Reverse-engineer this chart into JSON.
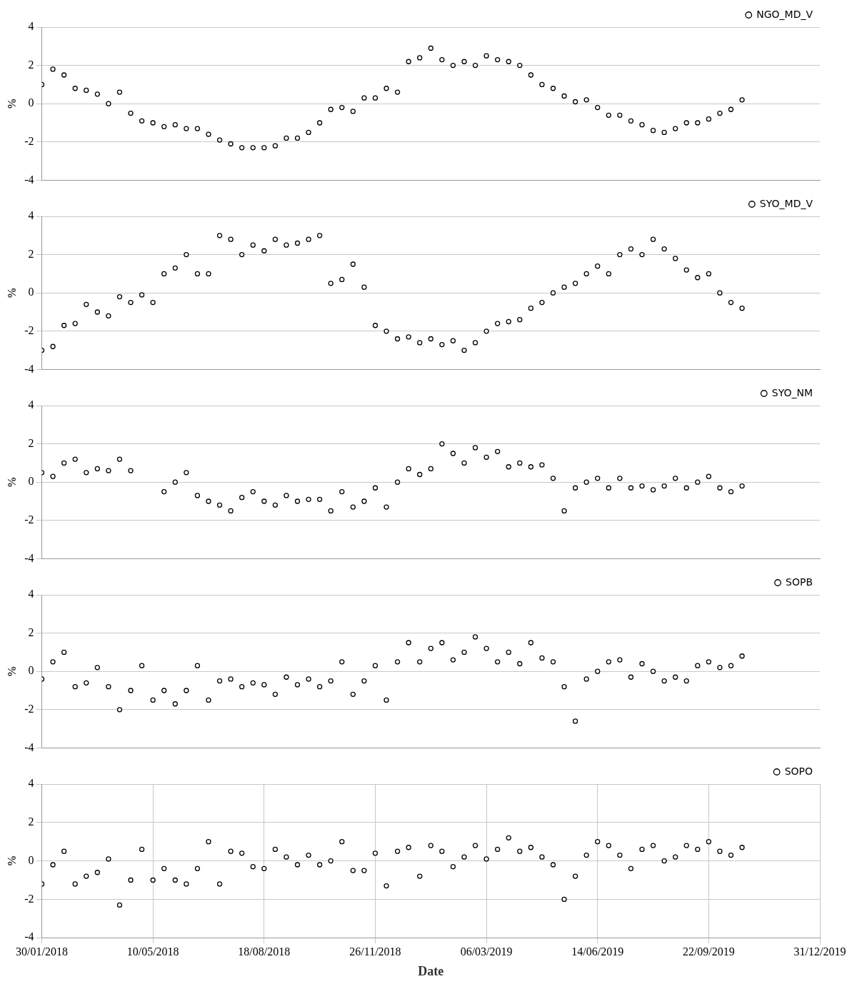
{
  "chart_data": [
    {
      "type": "scatter",
      "ylabel": "%",
      "tick_labels": "y",
      "marker": "circle",
      "grid": true,
      "legend": "top right",
      "xlim": [
        "2018-01-30",
        "2019-12-31"
      ],
      "xticks": [
        {
          "value": "2018-01-30",
          "label": null
        },
        {
          "value": "2018-05-10",
          "label": null
        },
        {
          "value": "2018-08-18",
          "label": null
        },
        {
          "value": "2018-11-26",
          "label": null
        },
        {
          "value": "2019-03-06",
          "label": null
        },
        {
          "value": "2019-06-14",
          "label": null
        },
        {
          "value": "2019-09-22",
          "label": null
        },
        {
          "value": "2019-12-31",
          "label": null
        }
      ],
      "ylim": [
        -4,
        4
      ],
      "yticks": [
        -4,
        -2,
        0,
        2,
        4
      ],
      "x": [
        "2018-01-30",
        "2018-02-09",
        "2018-02-19",
        "2018-03-01",
        "2018-03-11",
        "2018-03-21",
        "2018-03-31",
        "2018-04-10",
        "2018-04-20",
        "2018-04-30",
        "2018-05-10",
        "2018-05-20",
        "2018-05-30",
        "2018-06-09",
        "2018-06-19",
        "2018-06-29",
        "2018-07-09",
        "2018-07-19",
        "2018-07-29",
        "2018-08-08",
        "2018-08-18",
        "2018-08-28",
        "2018-09-07",
        "2018-09-17",
        "2018-09-27",
        "2018-10-07",
        "2018-10-17",
        "2018-10-27",
        "2018-11-06",
        "2018-11-16",
        "2018-11-26",
        "2018-12-06",
        "2018-12-16",
        "2018-12-26",
        "2019-01-05",
        "2019-01-15",
        "2019-01-25",
        "2019-02-04",
        "2019-02-14",
        "2019-02-24",
        "2019-03-06",
        "2019-03-16",
        "2019-03-26",
        "2019-04-05",
        "2019-04-15",
        "2019-04-25",
        "2019-05-05",
        "2019-05-15",
        "2019-05-25",
        "2019-06-04",
        "2019-06-14",
        "2019-06-24",
        "2019-07-04",
        "2019-07-14",
        "2019-07-24",
        "2019-08-03",
        "2019-08-13",
        "2019-08-23",
        "2019-09-02",
        "2019-09-12",
        "2019-09-22",
        "2019-10-02",
        "2019-10-12",
        "2019-10-22"
      ],
      "series": [
        {
          "name": "NGO_MD_V",
          "color": "#000000",
          "values": [
            1.0,
            1.8,
            1.5,
            0.8,
            0.7,
            0.5,
            0.0,
            0.6,
            -0.5,
            -0.9,
            -1.0,
            -1.2,
            -1.1,
            -1.3,
            -1.3,
            -1.6,
            -1.9,
            -2.1,
            -2.3,
            -2.3,
            -2.3,
            -2.2,
            -1.8,
            -1.8,
            -1.5,
            -1.0,
            -0.3,
            -0.2,
            -0.4,
            0.3,
            0.3,
            0.8,
            0.6,
            2.2,
            2.4,
            2.9,
            2.3,
            2.0,
            2.2,
            2.0,
            2.5,
            2.3,
            2.2,
            2.0,
            1.5,
            1.0,
            0.8,
            0.4,
            0.1,
            0.2,
            -0.2,
            -0.6,
            -0.6,
            -0.9,
            -1.1,
            -1.4,
            -1.5,
            -1.3,
            -1.0,
            -1.0,
            -0.8,
            -0.5,
            -0.3,
            0.2
          ]
        }
      ]
    },
    {
      "type": "scatter",
      "ylabel": "%",
      "tick_labels": "y",
      "marker": "circle",
      "grid": true,
      "legend": "top right",
      "xlim": [
        "2018-01-30",
        "2019-12-31"
      ],
      "xticks": [
        {
          "value": "2018-01-30",
          "label": null
        },
        {
          "value": "2018-05-10",
          "label": null
        },
        {
          "value": "2018-08-18",
          "label": null
        },
        {
          "value": "2018-11-26",
          "label": null
        },
        {
          "value": "2019-03-06",
          "label": null
        },
        {
          "value": "2019-06-14",
          "label": null
        },
        {
          "value": "2019-09-22",
          "label": null
        },
        {
          "value": "2019-12-31",
          "label": null
        }
      ],
      "ylim": [
        -4,
        4
      ],
      "yticks": [
        -4,
        -2,
        0,
        2,
        4
      ],
      "x": [
        "2018-01-30",
        "2018-02-09",
        "2018-02-19",
        "2018-03-01",
        "2018-03-11",
        "2018-03-21",
        "2018-03-31",
        "2018-04-10",
        "2018-04-20",
        "2018-04-30",
        "2018-05-10",
        "2018-05-20",
        "2018-05-30",
        "2018-06-09",
        "2018-06-19",
        "2018-06-29",
        "2018-07-09",
        "2018-07-19",
        "2018-07-29",
        "2018-08-08",
        "2018-08-18",
        "2018-08-28",
        "2018-09-07",
        "2018-09-17",
        "2018-09-27",
        "2018-10-07",
        "2018-10-17",
        "2018-10-27",
        "2018-11-06",
        "2018-11-16",
        "2018-11-26",
        "2018-12-06",
        "2018-12-16",
        "2018-12-26",
        "2019-01-05",
        "2019-01-15",
        "2019-01-25",
        "2019-02-04",
        "2019-02-14",
        "2019-02-24",
        "2019-03-06",
        "2019-03-16",
        "2019-03-26",
        "2019-04-05",
        "2019-04-15",
        "2019-04-25",
        "2019-05-05",
        "2019-05-15",
        "2019-05-25",
        "2019-06-04",
        "2019-06-14",
        "2019-06-24",
        "2019-07-04",
        "2019-07-14",
        "2019-07-24",
        "2019-08-03",
        "2019-08-13",
        "2019-08-23",
        "2019-09-02",
        "2019-09-12",
        "2019-09-22",
        "2019-10-02",
        "2019-10-12",
        "2019-10-22"
      ],
      "series": [
        {
          "name": "SYO_MD_V",
          "color": "#000000",
          "values": [
            -3.0,
            -2.8,
            -1.7,
            -1.6,
            -0.6,
            -1.0,
            -1.2,
            -0.2,
            -0.5,
            -0.1,
            -0.5,
            1.0,
            1.3,
            2.0,
            1.0,
            1.0,
            3.0,
            2.8,
            2.0,
            2.5,
            2.2,
            2.8,
            2.5,
            2.6,
            2.8,
            3.0,
            0.5,
            0.7,
            1.5,
            0.3,
            -1.7,
            -2.0,
            -2.4,
            -2.3,
            -2.6,
            -2.4,
            -2.7,
            -2.5,
            -3.0,
            -2.6,
            -2.0,
            -1.6,
            -1.5,
            -1.4,
            -0.8,
            -0.5,
            0.0,
            0.3,
            0.5,
            1.0,
            1.4,
            1.0,
            2.0,
            2.3,
            2.0,
            2.8,
            2.3,
            1.8,
            1.2,
            0.8,
            1.0,
            0.0,
            -0.5,
            -0.8
          ]
        }
      ]
    },
    {
      "type": "scatter",
      "ylabel": "%",
      "tick_labels": "y",
      "marker": "circle",
      "grid": true,
      "legend": "top right",
      "xlim": [
        "2018-01-30",
        "2019-12-31"
      ],
      "xticks": [
        {
          "value": "2018-01-30",
          "label": null
        },
        {
          "value": "2018-05-10",
          "label": null
        },
        {
          "value": "2018-08-18",
          "label": null
        },
        {
          "value": "2018-11-26",
          "label": null
        },
        {
          "value": "2019-03-06",
          "label": null
        },
        {
          "value": "2019-06-14",
          "label": null
        },
        {
          "value": "2019-09-22",
          "label": null
        },
        {
          "value": "2019-12-31",
          "label": null
        }
      ],
      "ylim": [
        -4,
        4
      ],
      "yticks": [
        -4,
        -2,
        0,
        2,
        4
      ],
      "x": [
        "2018-01-30",
        "2018-02-09",
        "2018-02-19",
        "2018-03-01",
        "2018-03-11",
        "2018-03-21",
        "2018-03-31",
        "2018-04-10",
        "2018-04-20",
        "2018-04-30",
        "2018-05-10",
        "2018-05-20",
        "2018-05-30",
        "2018-06-09",
        "2018-06-19",
        "2018-06-29",
        "2018-07-09",
        "2018-07-19",
        "2018-07-29",
        "2018-08-08",
        "2018-08-18",
        "2018-08-28",
        "2018-09-07",
        "2018-09-17",
        "2018-09-27",
        "2018-10-07",
        "2018-10-17",
        "2018-10-27",
        "2018-11-06",
        "2018-11-16",
        "2018-11-26",
        "2018-12-06",
        "2018-12-16",
        "2018-12-26",
        "2019-01-05",
        "2019-01-15",
        "2019-01-25",
        "2019-02-04",
        "2019-02-14",
        "2019-02-24",
        "2019-03-06",
        "2019-03-16",
        "2019-03-26",
        "2019-04-05",
        "2019-04-15",
        "2019-04-25",
        "2019-05-05",
        "2019-05-15",
        "2019-05-25",
        "2019-06-04",
        "2019-06-14",
        "2019-06-24",
        "2019-07-04",
        "2019-07-14",
        "2019-07-24",
        "2019-08-03",
        "2019-08-13",
        "2019-08-23",
        "2019-09-02",
        "2019-09-12",
        "2019-09-22",
        "2019-10-02",
        "2019-10-12",
        "2019-10-22"
      ],
      "series": [
        {
          "name": "SYO_NM",
          "color": "#000000",
          "values": [
            0.5,
            0.3,
            1.0,
            1.2,
            0.5,
            0.7,
            0.6,
            1.2,
            0.6,
            null,
            null,
            -0.5,
            0.0,
            0.5,
            -0.7,
            -1.0,
            -1.2,
            -1.5,
            -0.8,
            -0.5,
            -1.0,
            -1.2,
            -0.7,
            -1.0,
            -0.9,
            -0.9,
            -1.5,
            -0.5,
            -1.3,
            -1.0,
            -0.3,
            -1.3,
            0.0,
            0.7,
            0.4,
            0.7,
            2.0,
            1.5,
            1.0,
            1.8,
            1.3,
            1.6,
            0.8,
            1.0,
            0.8,
            0.9,
            0.2,
            -1.5,
            -0.3,
            0.0,
            0.2,
            -0.3,
            0.2,
            -0.3,
            -0.2,
            -0.4,
            -0.2,
            0.2,
            -0.3,
            0.0,
            0.3,
            -0.3,
            -0.5,
            -0.2
          ]
        }
      ]
    },
    {
      "type": "scatter",
      "ylabel": "%",
      "tick_labels": "y",
      "marker": "circle",
      "grid": true,
      "legend": "top right",
      "xlim": [
        "2018-01-30",
        "2019-12-31"
      ],
      "xticks": [
        {
          "value": "2018-01-30",
          "label": null
        },
        {
          "value": "2018-05-10",
          "label": null
        },
        {
          "value": "2018-08-18",
          "label": null
        },
        {
          "value": "2018-11-26",
          "label": null
        },
        {
          "value": "2019-03-06",
          "label": null
        },
        {
          "value": "2019-06-14",
          "label": null
        },
        {
          "value": "2019-09-22",
          "label": null
        },
        {
          "value": "2019-12-31",
          "label": null
        }
      ],
      "ylim": [
        -4,
        4
      ],
      "yticks": [
        -4,
        -2,
        0,
        2,
        4
      ],
      "x": [
        "2018-01-30",
        "2018-02-09",
        "2018-02-19",
        "2018-03-01",
        "2018-03-11",
        "2018-03-21",
        "2018-03-31",
        "2018-04-10",
        "2018-04-20",
        "2018-04-30",
        "2018-05-10",
        "2018-05-20",
        "2018-05-30",
        "2018-06-09",
        "2018-06-19",
        "2018-06-29",
        "2018-07-09",
        "2018-07-19",
        "2018-07-29",
        "2018-08-08",
        "2018-08-18",
        "2018-08-28",
        "2018-09-07",
        "2018-09-17",
        "2018-09-27",
        "2018-10-07",
        "2018-10-17",
        "2018-10-27",
        "2018-11-06",
        "2018-11-16",
        "2018-11-26",
        "2018-12-06",
        "2018-12-16",
        "2018-12-26",
        "2019-01-05",
        "2019-01-15",
        "2019-01-25",
        "2019-02-04",
        "2019-02-14",
        "2019-02-24",
        "2019-03-06",
        "2019-03-16",
        "2019-03-26",
        "2019-04-05",
        "2019-04-15",
        "2019-04-25",
        "2019-05-05",
        "2019-05-15",
        "2019-05-25",
        "2019-06-04",
        "2019-06-14",
        "2019-06-24",
        "2019-07-04",
        "2019-07-14",
        "2019-07-24",
        "2019-08-03",
        "2019-08-13",
        "2019-08-23",
        "2019-09-02",
        "2019-09-12",
        "2019-09-22",
        "2019-10-02",
        "2019-10-12",
        "2019-10-22"
      ],
      "series": [
        {
          "name": "SOPB",
          "color": "#000000",
          "values": [
            -0.4,
            0.5,
            1.0,
            -0.8,
            -0.6,
            0.2,
            -0.8,
            -2.0,
            -1.0,
            0.3,
            -1.5,
            -1.0,
            -1.7,
            -1.0,
            0.3,
            -1.5,
            -0.5,
            -0.4,
            -0.8,
            -0.6,
            -0.7,
            -1.2,
            -0.3,
            -0.7,
            -0.4,
            -0.8,
            -0.5,
            0.5,
            -1.2,
            -0.5,
            0.3,
            -1.5,
            0.5,
            1.5,
            0.5,
            1.2,
            1.5,
            0.6,
            1.0,
            1.8,
            1.2,
            0.5,
            1.0,
            0.4,
            1.5,
            0.7,
            0.5,
            -0.8,
            -2.6,
            -0.4,
            0.0,
            0.5,
            0.6,
            -0.3,
            0.4,
            0.0,
            -0.5,
            -0.3,
            -0.5,
            0.3,
            0.5,
            0.2,
            0.3,
            0.8
          ]
        }
      ]
    },
    {
      "type": "scatter",
      "xlabel": "Date",
      "ylabel": "%",
      "marker": "circle",
      "grid": true,
      "legend": "top right",
      "xlim": [
        "2018-01-30",
        "2019-12-31"
      ],
      "xticks": [
        {
          "value": "2018-01-30",
          "label": "30/01/2018"
        },
        {
          "value": "2018-05-10",
          "label": "10/05/2018"
        },
        {
          "value": "2018-08-18",
          "label": "18/08/2018"
        },
        {
          "value": "2018-11-26",
          "label": "26/11/2018"
        },
        {
          "value": "2019-03-06",
          "label": "06/03/2019"
        },
        {
          "value": "2019-06-14",
          "label": "14/06/2019"
        },
        {
          "value": "2019-09-22",
          "label": "22/09/2019"
        },
        {
          "value": "2019-12-31",
          "label": "31/12/2019"
        }
      ],
      "ylim": [
        -4,
        4
      ],
      "yticks": [
        -4,
        -2,
        0,
        2,
        4
      ],
      "x": [
        "2018-01-30",
        "2018-02-09",
        "2018-02-19",
        "2018-03-01",
        "2018-03-11",
        "2018-03-21",
        "2018-03-31",
        "2018-04-10",
        "2018-04-20",
        "2018-04-30",
        "2018-05-10",
        "2018-05-20",
        "2018-05-30",
        "2018-06-09",
        "2018-06-19",
        "2018-06-29",
        "2018-07-09",
        "2018-07-19",
        "2018-07-29",
        "2018-08-08",
        "2018-08-18",
        "2018-08-28",
        "2018-09-07",
        "2018-09-17",
        "2018-09-27",
        "2018-10-07",
        "2018-10-17",
        "2018-10-27",
        "2018-11-06",
        "2018-11-16",
        "2018-11-26",
        "2018-12-06",
        "2018-12-16",
        "2018-12-26",
        "2019-01-05",
        "2019-01-15",
        "2019-01-25",
        "2019-02-04",
        "2019-02-14",
        "2019-02-24",
        "2019-03-06",
        "2019-03-16",
        "2019-03-26",
        "2019-04-05",
        "2019-04-15",
        "2019-04-25",
        "2019-05-05",
        "2019-05-15",
        "2019-05-25",
        "2019-06-04",
        "2019-06-14",
        "2019-06-24",
        "2019-07-04",
        "2019-07-14",
        "2019-07-24",
        "2019-08-03",
        "2019-08-13",
        "2019-08-23",
        "2019-09-02",
        "2019-09-12",
        "2019-09-22",
        "2019-10-02",
        "2019-10-12",
        "2019-10-22"
      ],
      "series": [
        {
          "name": "SOPO",
          "color": "#000000",
          "values": [
            -1.2,
            -0.2,
            0.5,
            -1.2,
            -0.8,
            -0.6,
            0.1,
            -2.3,
            -1.0,
            0.6,
            -1.0,
            -0.4,
            -1.0,
            -1.2,
            -0.4,
            1.0,
            -1.2,
            0.5,
            0.4,
            -0.3,
            -0.4,
            0.6,
            0.2,
            -0.2,
            0.3,
            -0.2,
            0.0,
            1.0,
            -0.5,
            -0.5,
            0.4,
            -1.3,
            0.5,
            0.7,
            -0.8,
            0.8,
            0.5,
            -0.3,
            0.2,
            0.8,
            0.1,
            0.6,
            1.2,
            0.5,
            0.7,
            0.2,
            -0.2,
            -2.0,
            -0.8,
            0.3,
            1.0,
            0.8,
            0.3,
            -0.4,
            0.6,
            0.8,
            0.0,
            0.2,
            0.8,
            0.6,
            1.0,
            0.5,
            0.3,
            0.7
          ]
        }
      ]
    }
  ]
}
